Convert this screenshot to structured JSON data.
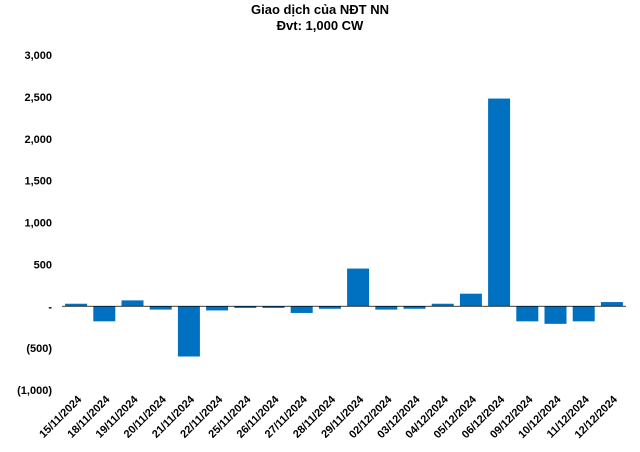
{
  "chart_data": {
    "type": "bar",
    "title": "Giao dịch của NĐT NN",
    "subtitle": "Đvt: 1,000 CW",
    "categories": [
      "15/11/2024",
      "18/11/2024",
      "19/11/2024",
      "20/11/2024",
      "21/11/2024",
      "22/11/2024",
      "25/11/2024",
      "26/11/2024",
      "27/11/2024",
      "28/11/2024",
      "29/11/2024",
      "02/12/2024",
      "03/12/2024",
      "04/12/2024",
      "05/12/2024",
      "06/12/2024",
      "09/12/2024",
      "10/12/2024",
      "11/12/2024",
      "12/12/2024"
    ],
    "values": [
      30,
      -180,
      70,
      -40,
      -600,
      -50,
      -20,
      -20,
      -80,
      -30,
      450,
      -40,
      -30,
      30,
      150,
      2480,
      -180,
      -210,
      -180,
      50
    ],
    "ylim": [
      -1000,
      3000
    ],
    "yticks": [
      3000,
      2500,
      2000,
      1500,
      1000,
      500,
      0,
      -500,
      -1000
    ],
    "ytick_labels": [
      "3,000",
      "2,500",
      "2,000",
      "1,500",
      "1,000",
      "500",
      "-",
      "(500)",
      "(1,000)"
    ],
    "bar_color": "#0070C0",
    "grid": false,
    "legend": "none"
  }
}
